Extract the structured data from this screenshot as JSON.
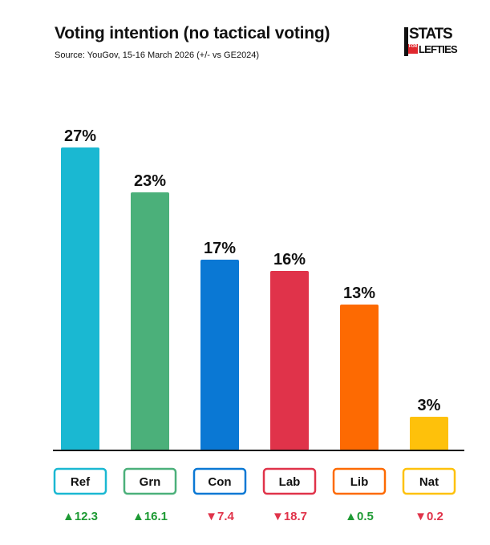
{
  "title": "Voting intention (no tactical voting)",
  "subtitle": "Source: YouGov, 15-16 March 2026 (+/- vs GE2024)",
  "logo": {
    "top": "STATS",
    "box": "FOR",
    "bottom": "LEFTIES"
  },
  "colors": {
    "up": "#1e9a34",
    "down": "#e0334a",
    "baseline": "#111111"
  },
  "chart_data": {
    "type": "bar",
    "ylim": [
      0,
      30
    ],
    "categories": [
      "Ref",
      "Grn",
      "Con",
      "Lab",
      "Lib",
      "Nat"
    ],
    "values": [
      27,
      23,
      17,
      16,
      13,
      3
    ],
    "value_labels": [
      "27%",
      "23%",
      "17%",
      "16%",
      "13%",
      "3%"
    ],
    "changes": [
      12.3,
      16.1,
      -7.4,
      -18.7,
      0.5,
      -0.2
    ],
    "change_labels": [
      "▲12.3",
      "▲16.1",
      "▼7.4",
      "▼18.7",
      "▲0.5",
      "▼0.2"
    ],
    "bar_colors": [
      "#1ab8d2",
      "#4bb07a",
      "#0a78d4",
      "#e0334a",
      "#fd6a02",
      "#fec10b"
    ]
  }
}
